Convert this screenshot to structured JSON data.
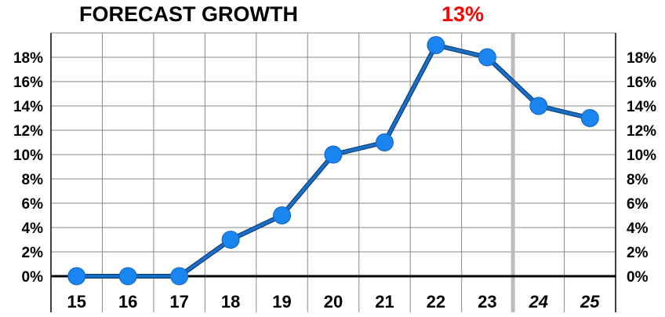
{
  "chart_data": {
    "type": "line",
    "title": "FORECAST GROWTH",
    "title_value": "13%",
    "title_value_color": "#ff0000",
    "x": [
      "15",
      "16",
      "17",
      "18",
      "19",
      "20",
      "21",
      "22",
      "23",
      "24",
      "25"
    ],
    "x_italic": [
      false,
      false,
      false,
      false,
      false,
      false,
      false,
      false,
      false,
      true,
      true
    ],
    "forecast_divider_between": [
      "23",
      "24"
    ],
    "series": [
      {
        "values": [
          0,
          0,
          0,
          3,
          5,
          10,
          11,
          19,
          18,
          14,
          13
        ],
        "color": "#1a84f0",
        "line_color": "#1a6fc8"
      }
    ],
    "ylim": [
      0,
      20
    ],
    "yticks": [
      0,
      2,
      4,
      6,
      8,
      10,
      12,
      14,
      16,
      18
    ],
    "ytick_suffix": "%",
    "y_axis_sides": [
      "left",
      "right"
    ],
    "grid": true,
    "xlabel": "",
    "ylabel": ""
  }
}
